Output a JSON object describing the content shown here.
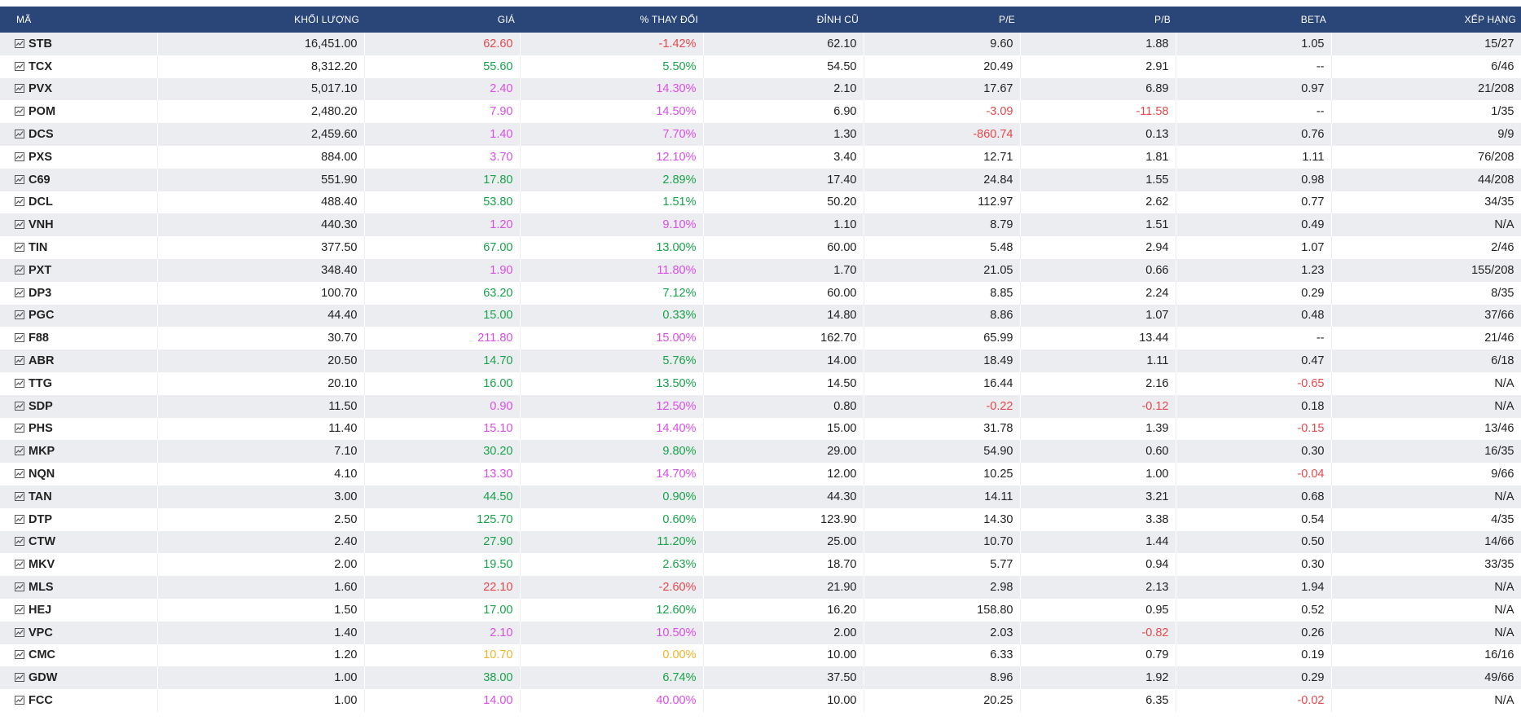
{
  "colors": {
    "header_bg": "#2a4679",
    "up": "#17a34a",
    "down": "#e5484d",
    "ceiling": "#d94ee6",
    "reference": "#f0b429"
  },
  "headers": [
    "MÃ",
    "KHỐI LƯỢNG",
    "GIÁ",
    "% THAY ĐỔI",
    "ĐỈNH CŨ",
    "P/E",
    "P/B",
    "BETA",
    "XẾP HẠNG"
  ],
  "rows": [
    {
      "code": "STB",
      "volume": "16,451.00",
      "price": "62.60",
      "change": "-1.42%",
      "status": "down",
      "prev_high": "62.10",
      "pe": "9.60",
      "pb": "1.88",
      "beta": "1.05",
      "rank": "15/27"
    },
    {
      "code": "TCX",
      "volume": "8,312.20",
      "price": "55.60",
      "change": "5.50%",
      "status": "up",
      "prev_high": "54.50",
      "pe": "20.49",
      "pb": "2.91",
      "beta": "--",
      "rank": "6/46"
    },
    {
      "code": "PVX",
      "volume": "5,017.10",
      "price": "2.40",
      "change": "14.30%",
      "status": "ceil",
      "prev_high": "2.10",
      "pe": "17.67",
      "pb": "6.89",
      "beta": "0.97",
      "rank": "21/208"
    },
    {
      "code": "POM",
      "volume": "2,480.20",
      "price": "7.90",
      "change": "14.50%",
      "status": "ceil",
      "prev_high": "6.90",
      "pe": "-3.09",
      "pb": "-11.58",
      "beta": "--",
      "rank": "1/35"
    },
    {
      "code": "DCS",
      "volume": "2,459.60",
      "price": "1.40",
      "change": "7.70%",
      "status": "ceil",
      "prev_high": "1.30",
      "pe": "-860.74",
      "pb": "0.13",
      "beta": "0.76",
      "rank": "9/9"
    },
    {
      "code": "PXS",
      "volume": "884.00",
      "price": "3.70",
      "change": "12.10%",
      "status": "ceil",
      "prev_high": "3.40",
      "pe": "12.71",
      "pb": "1.81",
      "beta": "1.11",
      "rank": "76/208"
    },
    {
      "code": "C69",
      "volume": "551.90",
      "price": "17.80",
      "change": "2.89%",
      "status": "up",
      "prev_high": "17.40",
      "pe": "24.84",
      "pb": "1.55",
      "beta": "0.98",
      "rank": "44/208"
    },
    {
      "code": "DCL",
      "volume": "488.40",
      "price": "53.80",
      "change": "1.51%",
      "status": "up",
      "prev_high": "50.20",
      "pe": "112.97",
      "pb": "2.62",
      "beta": "0.77",
      "rank": "34/35"
    },
    {
      "code": "VNH",
      "volume": "440.30",
      "price": "1.20",
      "change": "9.10%",
      "status": "ceil",
      "prev_high": "1.10",
      "pe": "8.79",
      "pb": "1.51",
      "beta": "0.49",
      "rank": "N/A"
    },
    {
      "code": "TIN",
      "volume": "377.50",
      "price": "67.00",
      "change": "13.00%",
      "status": "up",
      "prev_high": "60.00",
      "pe": "5.48",
      "pb": "2.94",
      "beta": "1.07",
      "rank": "2/46"
    },
    {
      "code": "PXT",
      "volume": "348.40",
      "price": "1.90",
      "change": "11.80%",
      "status": "ceil",
      "prev_high": "1.70",
      "pe": "21.05",
      "pb": "0.66",
      "beta": "1.23",
      "rank": "155/208"
    },
    {
      "code": "DP3",
      "volume": "100.70",
      "price": "63.20",
      "change": "7.12%",
      "status": "up",
      "prev_high": "60.00",
      "pe": "8.85",
      "pb": "2.24",
      "beta": "0.29",
      "rank": "8/35"
    },
    {
      "code": "PGC",
      "volume": "44.40",
      "price": "15.00",
      "change": "0.33%",
      "status": "up",
      "prev_high": "14.80",
      "pe": "8.86",
      "pb": "1.07",
      "beta": "0.48",
      "rank": "37/66"
    },
    {
      "code": "F88",
      "volume": "30.70",
      "price": "211.80",
      "change": "15.00%",
      "status": "ceil",
      "prev_high": "162.70",
      "pe": "65.99",
      "pb": "13.44",
      "beta": "--",
      "rank": "21/46"
    },
    {
      "code": "ABR",
      "volume": "20.50",
      "price": "14.70",
      "change": "5.76%",
      "status": "up",
      "prev_high": "14.00",
      "pe": "18.49",
      "pb": "1.11",
      "beta": "0.47",
      "rank": "6/18"
    },
    {
      "code": "TTG",
      "volume": "20.10",
      "price": "16.00",
      "change": "13.50%",
      "status": "up",
      "prev_high": "14.50",
      "pe": "16.44",
      "pb": "2.16",
      "beta": "-0.65",
      "rank": "N/A"
    },
    {
      "code": "SDP",
      "volume": "11.50",
      "price": "0.90",
      "change": "12.50%",
      "status": "ceil",
      "prev_high": "0.80",
      "pe": "-0.22",
      "pb": "-0.12",
      "beta": "0.18",
      "rank": "N/A"
    },
    {
      "code": "PHS",
      "volume": "11.40",
      "price": "15.10",
      "change": "14.40%",
      "status": "ceil",
      "prev_high": "15.00",
      "pe": "31.78",
      "pb": "1.39",
      "beta": "-0.15",
      "rank": "13/46"
    },
    {
      "code": "MKP",
      "volume": "7.10",
      "price": "30.20",
      "change": "9.80%",
      "status": "up",
      "prev_high": "29.00",
      "pe": "54.90",
      "pb": "0.60",
      "beta": "0.30",
      "rank": "16/35"
    },
    {
      "code": "NQN",
      "volume": "4.10",
      "price": "13.30",
      "change": "14.70%",
      "status": "ceil",
      "prev_high": "12.00",
      "pe": "10.25",
      "pb": "1.00",
      "beta": "-0.04",
      "rank": "9/66"
    },
    {
      "code": "TAN",
      "volume": "3.00",
      "price": "44.50",
      "change": "0.90%",
      "status": "up",
      "prev_high": "44.30",
      "pe": "14.11",
      "pb": "3.21",
      "beta": "0.68",
      "rank": "N/A"
    },
    {
      "code": "DTP",
      "volume": "2.50",
      "price": "125.70",
      "change": "0.60%",
      "status": "up",
      "prev_high": "123.90",
      "pe": "14.30",
      "pb": "3.38",
      "beta": "0.54",
      "rank": "4/35"
    },
    {
      "code": "CTW",
      "volume": "2.40",
      "price": "27.90",
      "change": "11.20%",
      "status": "up",
      "prev_high": "25.00",
      "pe": "10.70",
      "pb": "1.44",
      "beta": "0.50",
      "rank": "14/66"
    },
    {
      "code": "MKV",
      "volume": "2.00",
      "price": "19.50",
      "change": "2.63%",
      "status": "up",
      "prev_high": "18.70",
      "pe": "5.77",
      "pb": "0.94",
      "beta": "0.30",
      "rank": "33/35"
    },
    {
      "code": "MLS",
      "volume": "1.60",
      "price": "22.10",
      "change": "-2.60%",
      "status": "down",
      "prev_high": "21.90",
      "pe": "2.98",
      "pb": "2.13",
      "beta": "1.94",
      "rank": "N/A"
    },
    {
      "code": "HEJ",
      "volume": "1.50",
      "price": "17.00",
      "change": "12.60%",
      "status": "up",
      "prev_high": "16.20",
      "pe": "158.80",
      "pb": "0.95",
      "beta": "0.52",
      "rank": "N/A"
    },
    {
      "code": "VPC",
      "volume": "1.40",
      "price": "2.10",
      "change": "10.50%",
      "status": "ceil",
      "prev_high": "2.00",
      "pe": "2.03",
      "pb": "-0.82",
      "beta": "0.26",
      "rank": "N/A"
    },
    {
      "code": "CMC",
      "volume": "1.20",
      "price": "10.70",
      "change": "0.00%",
      "status": "ref",
      "prev_high": "10.00",
      "pe": "6.33",
      "pb": "0.79",
      "beta": "0.19",
      "rank": "16/16"
    },
    {
      "code": "GDW",
      "volume": "1.00",
      "price": "38.00",
      "change": "6.74%",
      "status": "up",
      "prev_high": "37.50",
      "pe": "8.96",
      "pb": "1.92",
      "beta": "0.29",
      "rank": "49/66"
    },
    {
      "code": "FCC",
      "volume": "1.00",
      "price": "14.00",
      "change": "40.00%",
      "status": "ceil",
      "prev_high": "10.00",
      "pe": "20.25",
      "pb": "6.35",
      "beta": "-0.02",
      "rank": "N/A"
    }
  ]
}
